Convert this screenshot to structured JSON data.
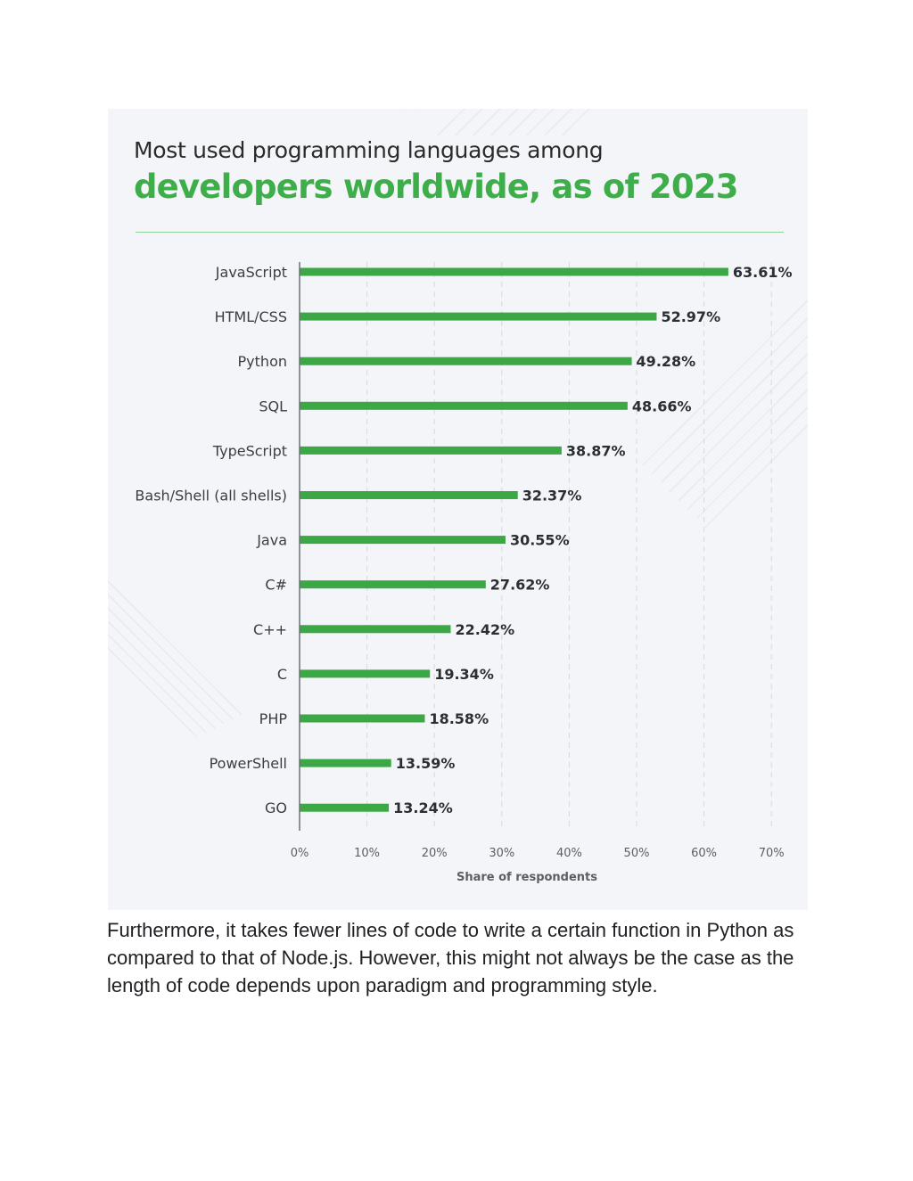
{
  "chart_data": {
    "type": "bar",
    "orientation": "horizontal",
    "title_line1": "Most used programming languages among",
    "title_line2": "developers worldwide, as of 2023",
    "xlabel": "Share of respondents",
    "categories": [
      "JavaScript",
      "HTML/CSS",
      "Python",
      "SQL",
      "TypeScript",
      "Bash/Shell (all shells)",
      "Java",
      "C#",
      "C++",
      "C",
      "PHP",
      "PowerShell",
      "GO"
    ],
    "values": [
      63.61,
      52.97,
      49.28,
      48.66,
      38.87,
      32.37,
      30.55,
      27.62,
      22.42,
      19.34,
      18.58,
      13.59,
      13.24
    ],
    "value_labels": [
      "63.61%",
      "52.97%",
      "49.28%",
      "48.66%",
      "38.87%",
      "32.37%",
      "30.55%",
      "27.62%",
      "22.42%",
      "19.34%",
      "18.58%",
      "13.59%",
      "13.24%"
    ],
    "xticks": [
      0,
      10,
      20,
      30,
      40,
      50,
      60,
      70
    ],
    "xtick_labels": [
      "0%",
      "10%",
      "20%",
      "30%",
      "40%",
      "50%",
      "60%",
      "70%"
    ],
    "xlim": [
      0,
      70
    ],
    "grid": "vertical dashed",
    "legend": "none",
    "bar_color": "#3ba845"
  },
  "article": {
    "paragraph": "Furthermore, it takes fewer lines of code to write a certain function in Python as compared to that of Node.js. However, this might not always be the case as the length of code depends upon paradigm and programming style."
  }
}
